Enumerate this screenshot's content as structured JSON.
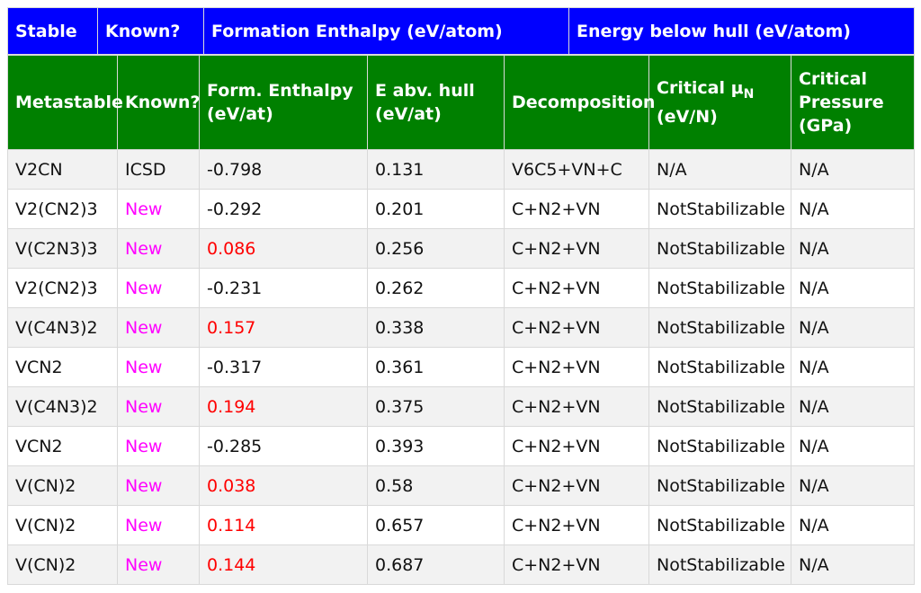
{
  "stable_header": {
    "stable": "Stable",
    "known": "Known?",
    "formation": "Formation Enthalpy (eV/atom)",
    "hull": "Energy below hull (eV/atom)"
  },
  "meta_header": {
    "metastable": "Metastable",
    "known": "Known?",
    "form_enthalpy_line1": "Form. Enthalpy",
    "form_enthalpy_line2": "(eV/at)",
    "e_abv_hull_line1": "E abv. hull",
    "e_abv_hull_line2": "(eV/at)",
    "decomposition": "Decomposition",
    "critical_mu_prefix": "Critical μ",
    "critical_mu_sub": "N",
    "critical_mu_unit": "(eV/N)",
    "critical_pressure_line1": "Critical",
    "critical_pressure_line2": "Pressure",
    "critical_pressure_line3": "(GPa)"
  },
  "rows": [
    {
      "formula": "V2CN",
      "known": "ICSD",
      "form_enthalpy": "-0.798",
      "e_hull": "0.131",
      "decomposition": "V6C5+VN+C",
      "critical_mu": "N/A",
      "critical_pressure": "N/A"
    },
    {
      "formula": "V2(CN2)3",
      "known": "New",
      "form_enthalpy": "-0.292",
      "e_hull": "0.201",
      "decomposition": "C+N2+VN",
      "critical_mu": "NotStabilizable",
      "critical_pressure": "N/A"
    },
    {
      "formula": "V(C2N3)3",
      "known": "New",
      "form_enthalpy": "0.086",
      "e_hull": "0.256",
      "decomposition": "C+N2+VN",
      "critical_mu": "NotStabilizable",
      "critical_pressure": "N/A"
    },
    {
      "formula": "V2(CN2)3",
      "known": "New",
      "form_enthalpy": "-0.231",
      "e_hull": "0.262",
      "decomposition": "C+N2+VN",
      "critical_mu": "NotStabilizable",
      "critical_pressure": "N/A"
    },
    {
      "formula": "V(C4N3)2",
      "known": "New",
      "form_enthalpy": "0.157",
      "e_hull": "0.338",
      "decomposition": "C+N2+VN",
      "critical_mu": "NotStabilizable",
      "critical_pressure": "N/A"
    },
    {
      "formula": "VCN2",
      "known": "New",
      "form_enthalpy": "-0.317",
      "e_hull": "0.361",
      "decomposition": "C+N2+VN",
      "critical_mu": "NotStabilizable",
      "critical_pressure": "N/A"
    },
    {
      "formula": "V(C4N3)2",
      "known": "New",
      "form_enthalpy": "0.194",
      "e_hull": "0.375",
      "decomposition": "C+N2+VN",
      "critical_mu": "NotStabilizable",
      "critical_pressure": "N/A"
    },
    {
      "formula": "VCN2",
      "known": "New",
      "form_enthalpy": "-0.285",
      "e_hull": "0.393",
      "decomposition": "C+N2+VN",
      "critical_mu": "NotStabilizable",
      "critical_pressure": "N/A"
    },
    {
      "formula": "V(CN)2",
      "known": "New",
      "form_enthalpy": "0.038",
      "e_hull": "0.58",
      "decomposition": "C+N2+VN",
      "critical_mu": "NotStabilizable",
      "critical_pressure": "N/A"
    },
    {
      "formula": "V(CN)2",
      "known": "New",
      "form_enthalpy": "0.114",
      "e_hull": "0.657",
      "decomposition": "C+N2+VN",
      "critical_mu": "NotStabilizable",
      "critical_pressure": "N/A"
    },
    {
      "formula": "V(CN)2",
      "known": "New",
      "form_enthalpy": "0.144",
      "e_hull": "0.687",
      "decomposition": "C+N2+VN",
      "critical_mu": "NotStabilizable",
      "critical_pressure": "N/A"
    }
  ],
  "colors": {
    "stable_header_bg": "#0000ff",
    "meta_header_bg": "#008000",
    "new_text": "#ff00ff",
    "positive_enthalpy_text": "#ff0000"
  }
}
